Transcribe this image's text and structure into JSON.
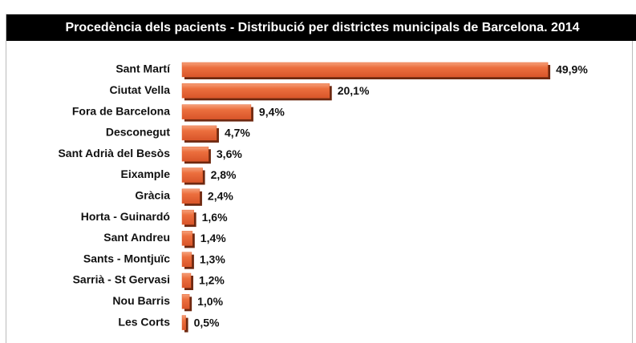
{
  "chart_data": {
    "type": "bar",
    "orientation": "horizontal",
    "title": "Procedència dels pacients - Distribució per districtes municipals de Barcelona. 2014",
    "categories": [
      "Sant Martí",
      "Ciutat Vella",
      "Fora de Barcelona",
      "Desconegut",
      "Sant Adrià del Besòs",
      "Eixample",
      "Gràcia",
      "Horta - Guinardó",
      "Sant Andreu",
      "Sants - Montjuïc",
      "Sarrià - St Gervasi",
      "Nou Barris",
      "Les Corts"
    ],
    "values": [
      49.9,
      20.1,
      9.4,
      4.7,
      3.6,
      2.8,
      2.4,
      1.6,
      1.4,
      1.3,
      1.2,
      1.0,
      0.5
    ],
    "value_labels": [
      "49,9%",
      "20,1%",
      "9,4%",
      "4,7%",
      "3,6%",
      "2,8%",
      "2,4%",
      "1,6%",
      "1,4%",
      "1,3%",
      "1,2%",
      "1,0%",
      "0,5%"
    ],
    "color": "#e8622f"
  }
}
